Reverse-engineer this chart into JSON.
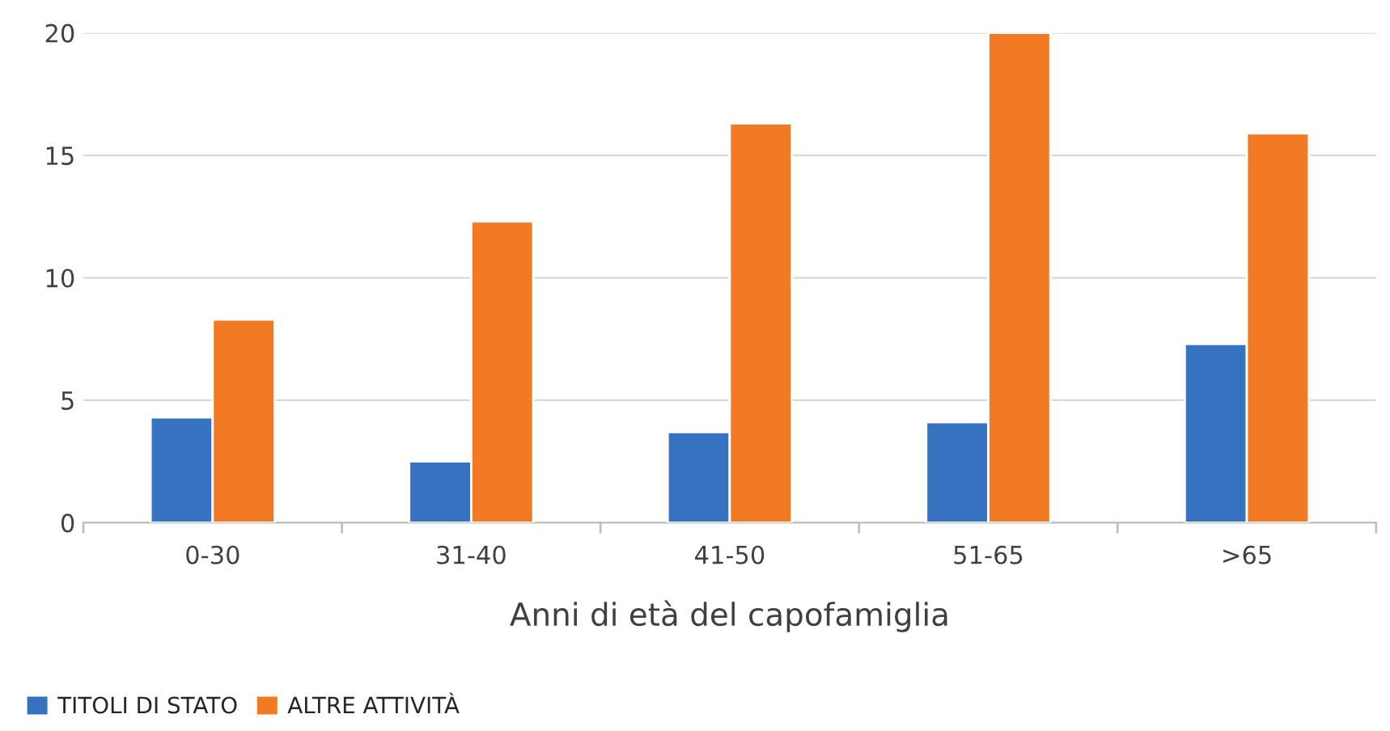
{
  "chart_data": {
    "type": "bar",
    "xlabel": "Anni di età del capofamiglia",
    "categories": [
      "0-30",
      "31-40",
      "41-50",
      "51-65",
      ">65"
    ],
    "series": [
      {
        "name": "TITOLI DI STATO",
        "color": "#3672bf",
        "values": [
          4.3,
          2.5,
          3.7,
          4.1,
          7.3
        ]
      },
      {
        "name": "ALTRE ATTIVITÀ",
        "color": "#f27a24",
        "values": [
          8.3,
          12.3,
          16.3,
          20,
          15.9
        ]
      }
    ],
    "ylim": [
      0,
      20
    ],
    "yticks": [
      0,
      5,
      10,
      15,
      20
    ],
    "grid": "y",
    "legend": "bottom left"
  }
}
